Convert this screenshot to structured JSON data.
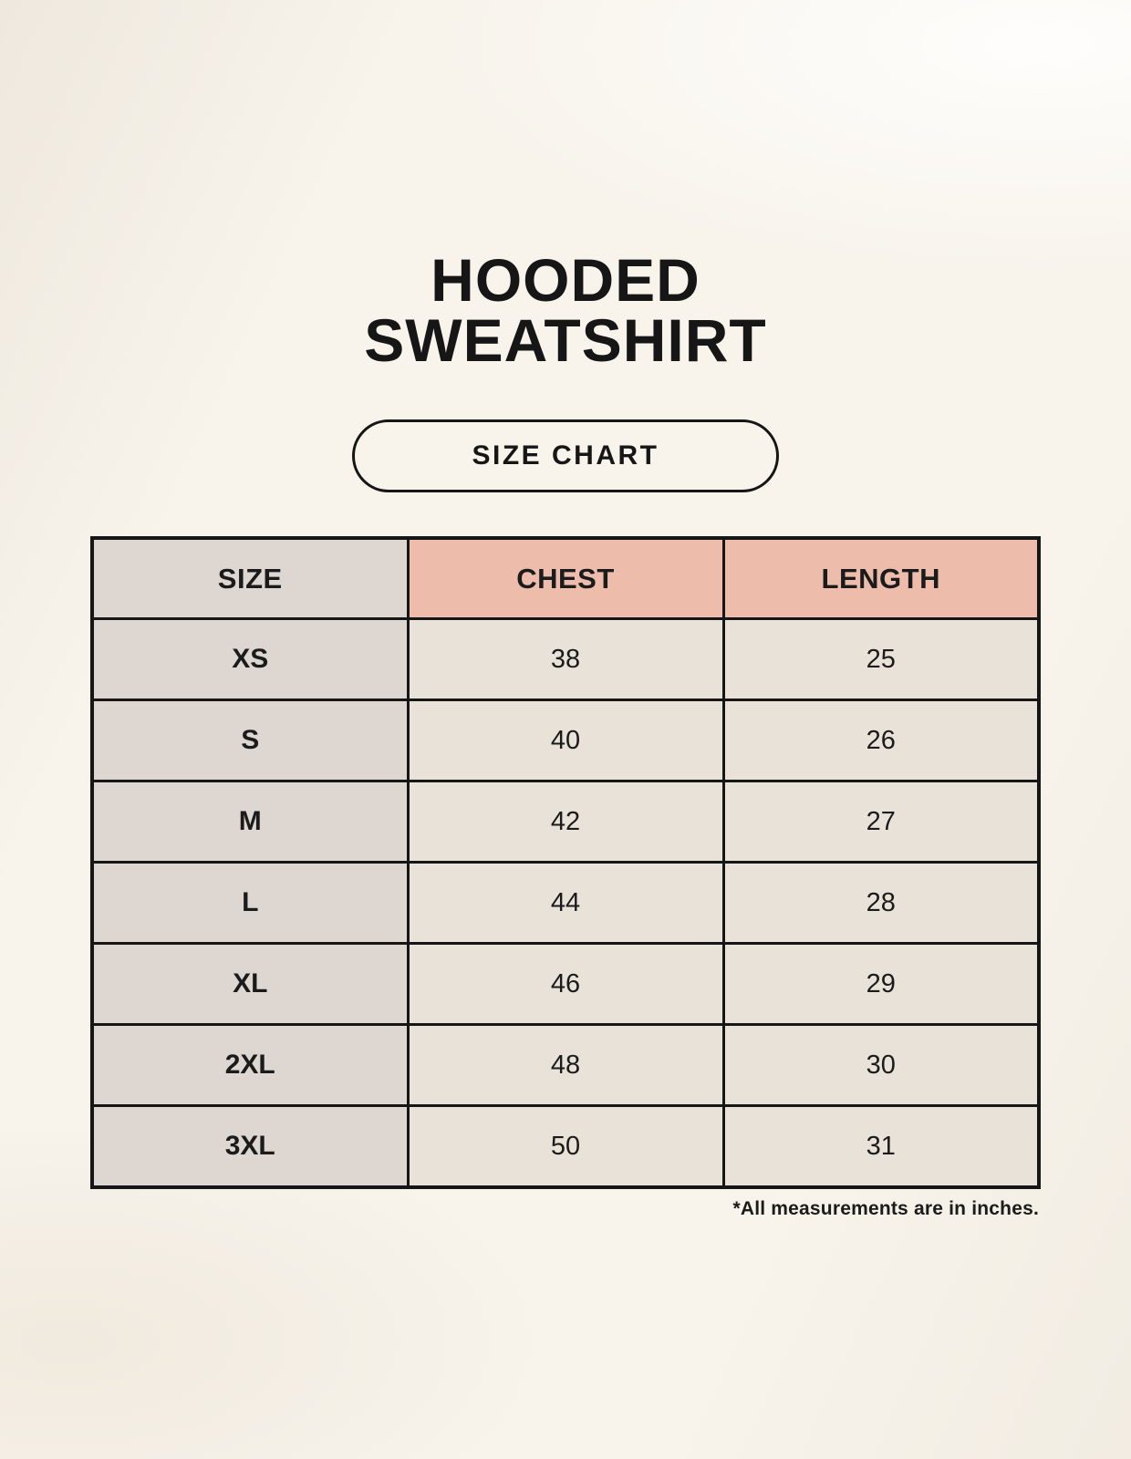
{
  "header": {
    "title_line1": "HOODED",
    "title_line2": "SWEATSHIRT",
    "badge_label": "SIZE CHART"
  },
  "chart_data": {
    "type": "table",
    "title": "HOODED SWEATSHIRT",
    "subtitle": "SIZE CHART",
    "columns": [
      "SIZE",
      "CHEST",
      "LENGTH"
    ],
    "rows": [
      [
        "XS",
        "38",
        "25"
      ],
      [
        "S",
        "40",
        "26"
      ],
      [
        "M",
        "42",
        "27"
      ],
      [
        "L",
        "44",
        "28"
      ],
      [
        "XL",
        "46",
        "29"
      ],
      [
        "2XL",
        "48",
        "30"
      ],
      [
        "3XL",
        "50",
        "31"
      ]
    ],
    "units": "inches",
    "footnote": "*All measurements are in inches."
  },
  "colors": {
    "background": "#f8f4ec",
    "text": "#161616",
    "table_border": "#161616",
    "size_column_bg": "#ded7d1",
    "measure_header_bg": "#edbcab",
    "value_cell_bg": "#e9e2d8"
  }
}
